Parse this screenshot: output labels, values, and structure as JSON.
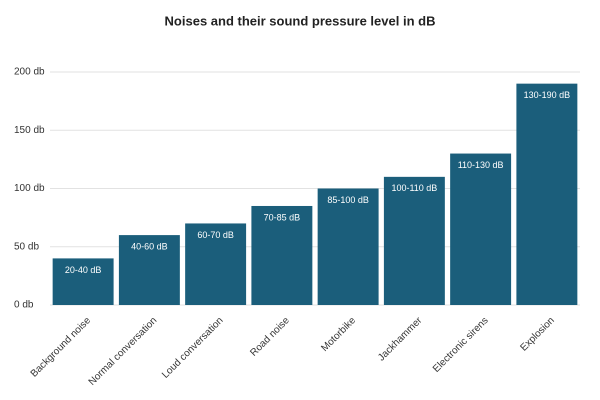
{
  "chart_data": {
    "type": "bar",
    "title": "Noises and their sound pressure level in dB",
    "categories": [
      "Background noise",
      "Normal conversation",
      "Loud conversation",
      "Road noise",
      "Motorbike",
      "Jackhammer",
      "Electronic sirens",
      "Explosion"
    ],
    "values": [
      40,
      60,
      70,
      85,
      100,
      110,
      130,
      190
    ],
    "value_labels": [
      "20-40 dB",
      "40-60 dB",
      "60-70 dB",
      "70-85 dB",
      "85-100 dB",
      "100-110 dB",
      "110-130 dB",
      "130-190 dB"
    ],
    "color": "#1b5e7b",
    "ylim": [
      0,
      200
    ],
    "yticks": [
      {
        "value": 0,
        "label": "0 db"
      },
      {
        "value": 50,
        "label": "50 db"
      },
      {
        "value": 100,
        "label": "100 db"
      },
      {
        "value": 150,
        "label": "150 db"
      },
      {
        "value": 200,
        "label": "200 db"
      }
    ],
    "grid": true
  }
}
